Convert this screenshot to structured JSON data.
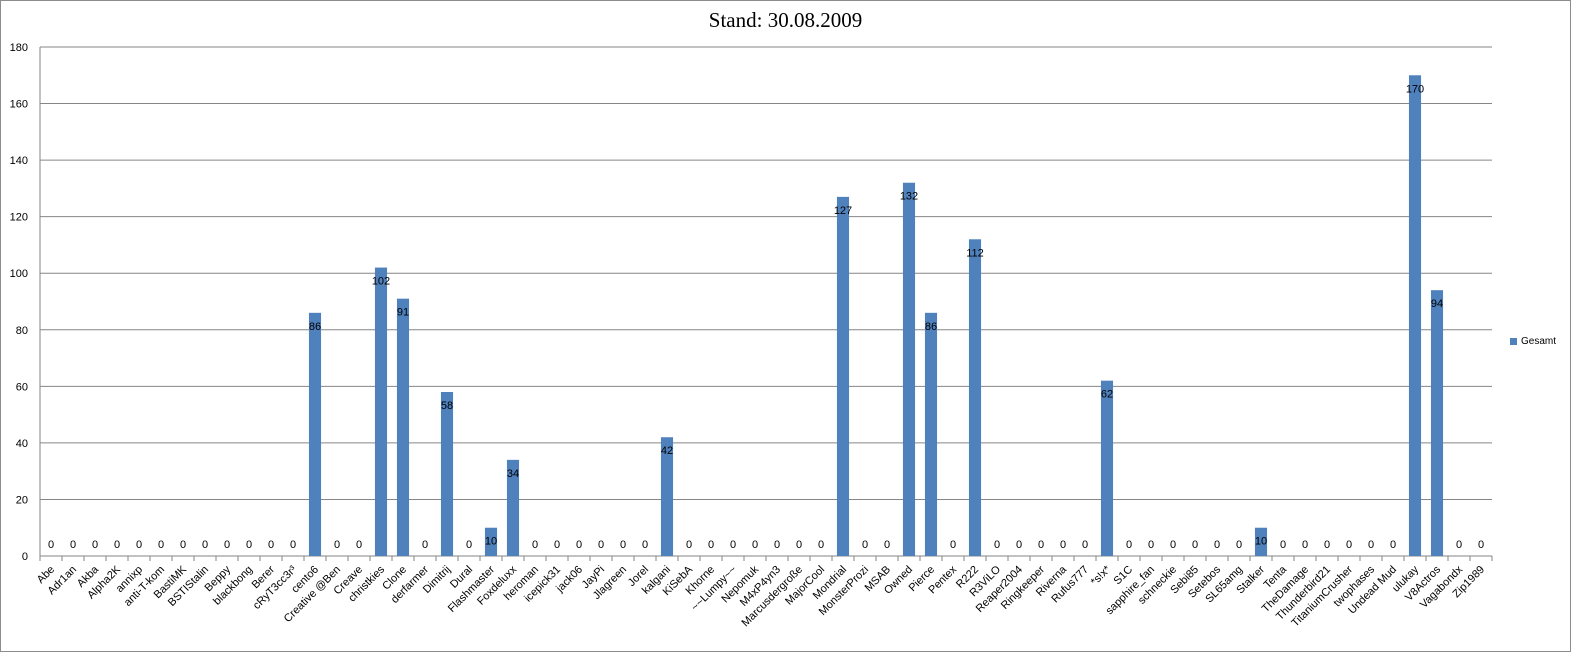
{
  "chart_data": {
    "type": "bar",
    "title": "Stand: 30.08.2009",
    "xlabel": "",
    "ylabel": "",
    "ylim": [
      0,
      180
    ],
    "yticks": [
      0,
      20,
      40,
      60,
      80,
      100,
      120,
      140,
      160,
      180
    ],
    "grid": true,
    "legend_position": "right",
    "bar_color": "#4f81bd",
    "categories": [
      "Abe",
      "Adr1an",
      "Akba",
      "Alpha2K",
      "annixp",
      "anti-T-kom",
      "BastiMK",
      "BSTIStalin",
      "Beppy",
      "blackbong",
      "Berer",
      "cRyT3cc3r³",
      "cento6",
      "Creative @Ben",
      "Creave",
      "christkies",
      "Clone",
      "derfarmer",
      "Dimitrij",
      "Dural",
      "Flashmaster",
      "Foxdeluxx",
      "heroman",
      "icepick31",
      "jack06",
      "JayPi",
      "Jlagreen",
      "Jorel",
      "kalgani",
      "KiSebA",
      "Khorne",
      "~~Lumpy~~",
      "Nepomuk",
      "M4xP4yn3",
      "Marcusdergroße",
      "MajorCool",
      "Mondrial",
      "MonsterProzi",
      "MSAB",
      "Owned",
      "Pierce",
      "Pentex",
      "R222",
      "R3ViLO",
      "Reaper2004",
      "Ringkeeper",
      "Riverna",
      "Rufus777",
      "*s!x*",
      "S1C",
      "sapphire_fan",
      "schneckie",
      "Sebi85",
      "Setebos",
      "SL65amg",
      "Stalker",
      "Tenta",
      "TheDamage",
      "Thunderbird21",
      "TitaniumCrusher",
      "twophases",
      "Undead Mud",
      "ulukay",
      "V8Actros",
      "Vagabondx",
      "Zip1989"
    ],
    "series": [
      {
        "name": "Gesamt",
        "values": [
          0,
          0,
          0,
          0,
          0,
          0,
          0,
          0,
          0,
          0,
          0,
          0,
          86,
          0,
          0,
          102,
          91,
          0,
          58,
          0,
          10,
          34,
          0,
          0,
          0,
          0,
          0,
          0,
          42,
          0,
          0,
          0,
          0,
          0,
          0,
          0,
          127,
          0,
          0,
          132,
          86,
          0,
          112,
          0,
          0,
          0,
          0,
          0,
          62,
          0,
          0,
          0,
          0,
          0,
          0,
          10,
          0,
          0,
          0,
          0,
          0,
          0,
          170,
          94,
          0,
          0
        ]
      }
    ]
  }
}
